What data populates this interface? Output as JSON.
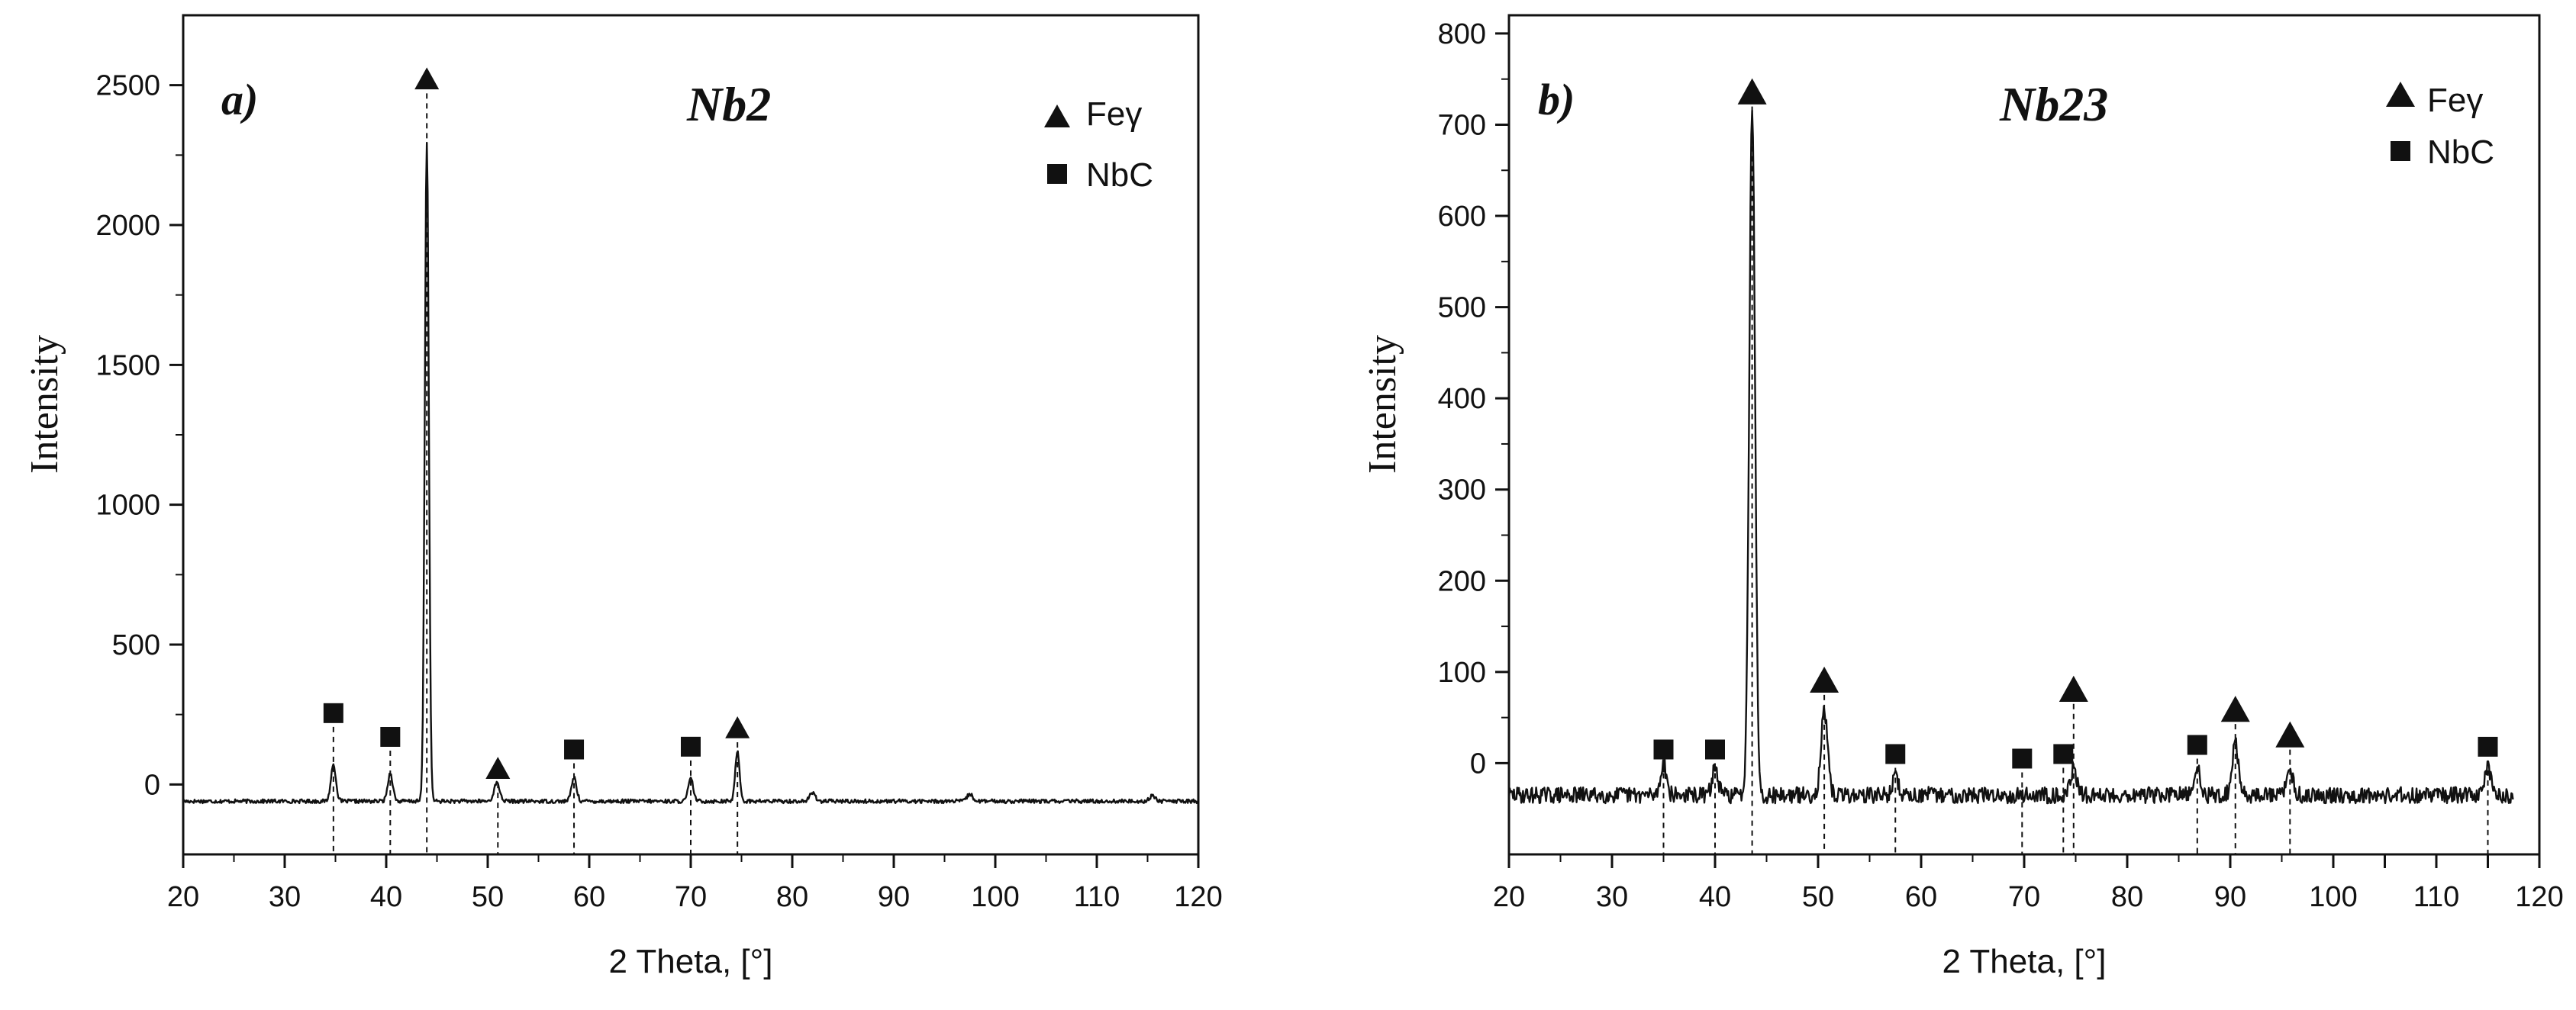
{
  "chart_data": [
    {
      "type": "line",
      "panel_label": "a)",
      "title": "Nb2",
      "xlabel": "2 Theta, [°]",
      "ylabel": "Intensity",
      "xlim": [
        20,
        120
      ],
      "ylim": [
        -250,
        2750
      ],
      "xticks": [
        20,
        30,
        40,
        50,
        60,
        70,
        80,
        90,
        100,
        110,
        120
      ],
      "yticks": [
        0,
        500,
        1000,
        1500,
        2000,
        2500
      ],
      "baseline": -60,
      "legend": [
        {
          "label": "Feγ",
          "marker": "triangle"
        },
        {
          "label": "NbC",
          "marker": "square"
        }
      ],
      "peaks": [
        {
          "x": 34.8,
          "y": 70,
          "w": 0.35
        },
        {
          "x": 40.4,
          "y": 40,
          "w": 0.35
        },
        {
          "x": 44.0,
          "y": 2300,
          "w": 0.28
        },
        {
          "x": 50.9,
          "y": 5,
          "w": 0.4
        },
        {
          "x": 58.5,
          "y": 25,
          "w": 0.35
        },
        {
          "x": 70.0,
          "y": 20,
          "w": 0.35
        },
        {
          "x": 74.6,
          "y": 120,
          "w": 0.3
        },
        {
          "x": 82.0,
          "y": -30,
          "w": 0.4
        },
        {
          "x": 97.5,
          "y": -35,
          "w": 0.4
        },
        {
          "x": 115.5,
          "y": -40,
          "w": 0.4
        }
      ],
      "markers": [
        {
          "phase": "NbC",
          "x": 34.8,
          "y": 255
        },
        {
          "phase": "NbC",
          "x": 40.4,
          "y": 170
        },
        {
          "phase": "Feγ",
          "x": 44.0,
          "y": 2520
        },
        {
          "phase": "Feγ",
          "x": 51.0,
          "y": 55
        },
        {
          "phase": "NbC",
          "x": 58.5,
          "y": 125
        },
        {
          "phase": "NbC",
          "x": 70.0,
          "y": 135
        },
        {
          "phase": "Feγ",
          "x": 74.6,
          "y": 200
        }
      ]
    },
    {
      "type": "line",
      "panel_label": "b)",
      "title": "Nb23",
      "xlabel": "2 Theta, [°]",
      "ylabel": "Intensity",
      "xlim": [
        20,
        120
      ],
      "ylim": [
        -100,
        820
      ],
      "xticks": [
        20,
        30,
        40,
        50,
        60,
        70,
        80,
        90,
        100,
        105,
        110,
        115,
        120
      ],
      "xtick_labels": [
        "20",
        "30",
        "40",
        "50",
        "60",
        "70",
        "80",
        "90",
        "100",
        "",
        "110",
        "",
        "120"
      ],
      "yticks": [
        0,
        100,
        200,
        300,
        400,
        500,
        600,
        700,
        800
      ],
      "baseline": -35,
      "legend": [
        {
          "label": "Feγ",
          "marker": "triangle"
        },
        {
          "label": "NbC",
          "marker": "square"
        }
      ],
      "peaks": [
        {
          "x": 35.0,
          "y": 0,
          "w": 0.4
        },
        {
          "x": 40.0,
          "y": -5,
          "w": 0.4
        },
        {
          "x": 43.6,
          "y": 720,
          "w": 0.4
        },
        {
          "x": 50.6,
          "y": 55,
          "w": 0.45
        },
        {
          "x": 57.5,
          "y": -15,
          "w": 0.4
        },
        {
          "x": 74.8,
          "y": -5,
          "w": 0.4
        },
        {
          "x": 86.8,
          "y": -5,
          "w": 0.4
        },
        {
          "x": 90.5,
          "y": 20,
          "w": 0.45
        },
        {
          "x": 95.8,
          "y": -10,
          "w": 0.45
        },
        {
          "x": 115.0,
          "y": -5,
          "w": 0.45
        }
      ],
      "markers": [
        {
          "phase": "NbC",
          "x": 35.0,
          "y": 15
        },
        {
          "phase": "NbC",
          "x": 40.0,
          "y": 15
        },
        {
          "phase": "Feγ",
          "x": 43.6,
          "y": 735
        },
        {
          "phase": "Feγ",
          "x": 50.6,
          "y": 90
        },
        {
          "phase": "NbC",
          "x": 57.5,
          "y": 10
        },
        {
          "phase": "NbC",
          "x": 69.8,
          "y": 5
        },
        {
          "phase": "NbC",
          "x": 73.8,
          "y": 10
        },
        {
          "phase": "Feγ",
          "x": 74.8,
          "y": 80
        },
        {
          "phase": "NbC",
          "x": 86.8,
          "y": 20
        },
        {
          "phase": "Feγ",
          "x": 90.5,
          "y": 58
        },
        {
          "phase": "Feγ",
          "x": 95.8,
          "y": 30
        },
        {
          "phase": "NbC",
          "x": 115.0,
          "y": 18
        }
      ]
    }
  ]
}
